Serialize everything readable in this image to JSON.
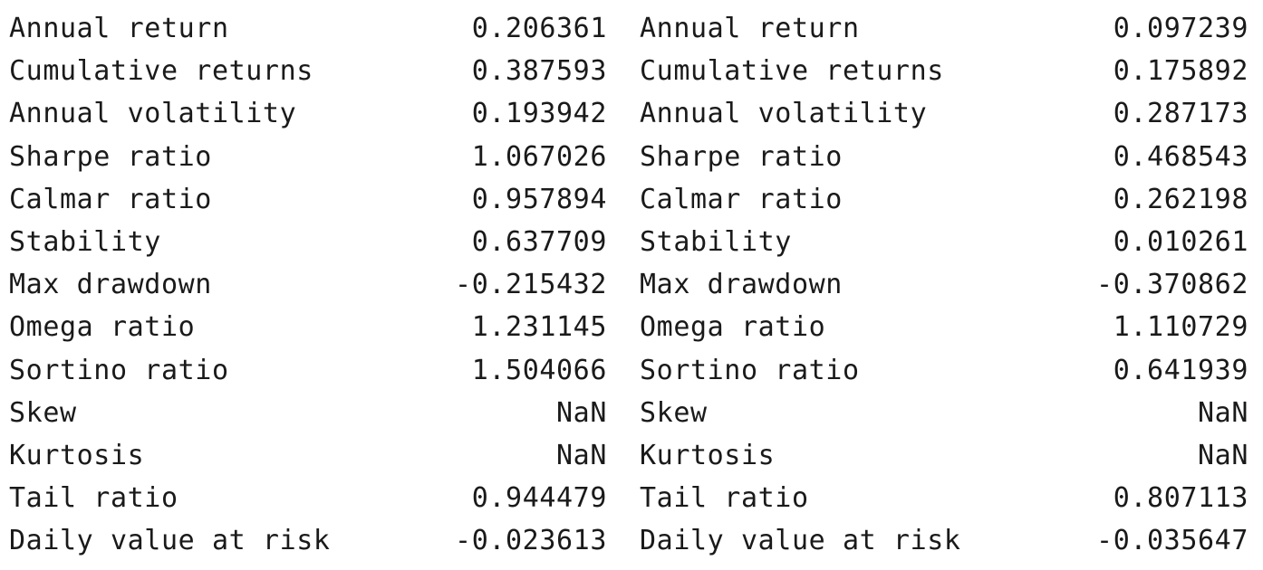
{
  "left_panel": {
    "rows": [
      {
        "label": "Annual return",
        "value": "0.206361"
      },
      {
        "label": "Cumulative returns",
        "value": "0.387593"
      },
      {
        "label": "Annual volatility",
        "value": "0.193942"
      },
      {
        "label": "Sharpe ratio",
        "value": "1.067026"
      },
      {
        "label": "Calmar ratio",
        "value": "0.957894"
      },
      {
        "label": "Stability",
        "value": "0.637709"
      },
      {
        "label": "Max drawdown",
        "value": "-0.215432"
      },
      {
        "label": "Omega ratio",
        "value": "1.231145"
      },
      {
        "label": "Sortino ratio",
        "value": "1.504066"
      },
      {
        "label": "Skew",
        "value": "NaN"
      },
      {
        "label": "Kurtosis",
        "value": "NaN"
      },
      {
        "label": "Tail ratio",
        "value": "0.944479"
      },
      {
        "label": "Daily value at risk",
        "value": "-0.023613"
      }
    ]
  },
  "right_panel": {
    "rows": [
      {
        "label": "Annual return",
        "value": "0.097239"
      },
      {
        "label": "Cumulative returns",
        "value": "0.175892"
      },
      {
        "label": "Annual volatility",
        "value": "0.287173"
      },
      {
        "label": "Sharpe ratio",
        "value": "0.468543"
      },
      {
        "label": "Calmar ratio",
        "value": "0.262198"
      },
      {
        "label": "Stability",
        "value": "0.010261"
      },
      {
        "label": "Max drawdown",
        "value": "-0.370862"
      },
      {
        "label": "Omega ratio",
        "value": "1.110729"
      },
      {
        "label": "Sortino ratio",
        "value": "0.641939"
      },
      {
        "label": "Skew",
        "value": "NaN"
      },
      {
        "label": "Kurtosis",
        "value": "NaN"
      },
      {
        "label": "Tail ratio",
        "value": "0.807113"
      },
      {
        "label": "Daily value at risk",
        "value": "-0.035647"
      }
    ]
  }
}
